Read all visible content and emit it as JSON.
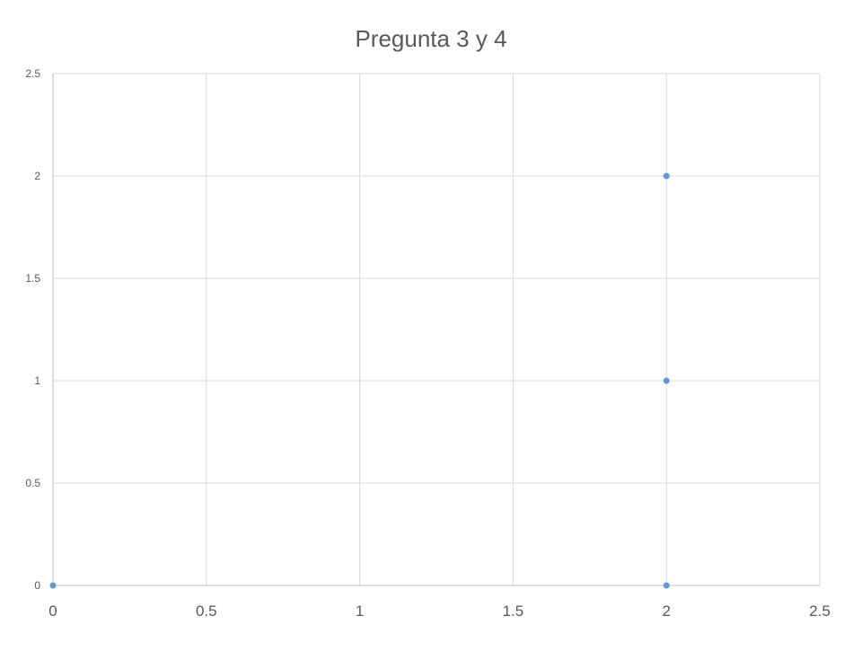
{
  "chart_data": {
    "type": "scatter",
    "title": "Pregunta 3 y 4",
    "xlabel": "",
    "ylabel": "",
    "xlim": [
      0,
      2.5
    ],
    "ylim": [
      0,
      2.5
    ],
    "x_ticks": [
      "0",
      "0.5",
      "1",
      "1.5",
      "2",
      "2.5"
    ],
    "y_ticks": [
      "0",
      "0.5",
      "1",
      "1.5",
      "2",
      "2.5"
    ],
    "grid": true,
    "legend": "none",
    "series": [
      {
        "color": "#5b9bd5",
        "points": [
          {
            "x": 0,
            "y": 0
          },
          {
            "x": 2,
            "y": 0
          },
          {
            "x": 2,
            "y": 1
          },
          {
            "x": 2,
            "y": 2
          }
        ]
      }
    ],
    "colors": {
      "grid": "#d9d9d9",
      "axis": "#bfbfbf",
      "tick_label": "#595959",
      "title": "#595959"
    }
  }
}
